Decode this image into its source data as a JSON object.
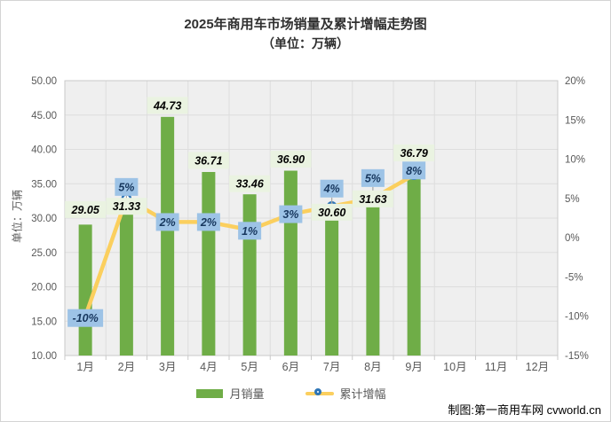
{
  "title": {
    "line1": "2025年商用车市场销量及累计增幅走势图",
    "line2": "（单位：万辆）"
  },
  "y_axis_title": "单位：万辆",
  "credit": "制图:第一商用车网 cvworld.cn",
  "legend": {
    "bar_label": "月销量",
    "line_label": "累计增幅"
  },
  "colors": {
    "bar": "#6FAD47",
    "line": "#FBCF5E",
    "marker_ring": "#2E75B6",
    "marker_fill": "#FFFFFF",
    "sales_label_bg": "#EAF3E1",
    "sales_label_text": "#000000",
    "pct_label_bg": "#9DC3E6",
    "pct_label_text": "#17375E",
    "plot_bg": "#EFEFEF",
    "grid": "#DDDDDD",
    "plot_border": "#C9C9C9",
    "axis_text": "#595959",
    "connector": "#A6A6A6"
  },
  "chart_data": {
    "type": "combo",
    "categories": [
      "1月",
      "2月",
      "3月",
      "4月",
      "5月",
      "6月",
      "7月",
      "8月",
      "9月",
      "10月",
      "11月",
      "12月"
    ],
    "series": [
      {
        "name": "月销量",
        "type": "bar",
        "axis": "left",
        "values": [
          29.05,
          31.33,
          44.73,
          36.71,
          33.46,
          36.9,
          30.6,
          31.63,
          36.79,
          null,
          null,
          null
        ],
        "labels": [
          "29.05",
          "31.33",
          "44.73",
          "36.71",
          "33.46",
          "36.90",
          "30.60",
          "31.63",
          "36.79",
          "",
          "",
          ""
        ]
      },
      {
        "name": "累计增幅",
        "type": "line",
        "axis": "right",
        "values": [
          -10,
          5,
          2,
          2,
          1,
          3,
          4,
          5,
          8,
          null,
          null,
          null
        ],
        "labels": [
          "-10%",
          "5%",
          "2%",
          "2%",
          "1%",
          "3%",
          "4%",
          "5%",
          "8%",
          "",
          "",
          ""
        ]
      }
    ],
    "left_axis": {
      "min": 10,
      "max": 50,
      "step": 5,
      "tick_labels": [
        "10.00",
        "15.00",
        "20.00",
        "25.00",
        "30.00",
        "35.00",
        "40.00",
        "45.00",
        "50.00"
      ]
    },
    "right_axis": {
      "min": -15,
      "max": 20,
      "step": 5,
      "tick_labels": [
        "-15%",
        "-10%",
        "-5%",
        "0%",
        "5%",
        "10%",
        "15%",
        "20%"
      ]
    },
    "grid": "both",
    "legend_position": "bottom"
  }
}
